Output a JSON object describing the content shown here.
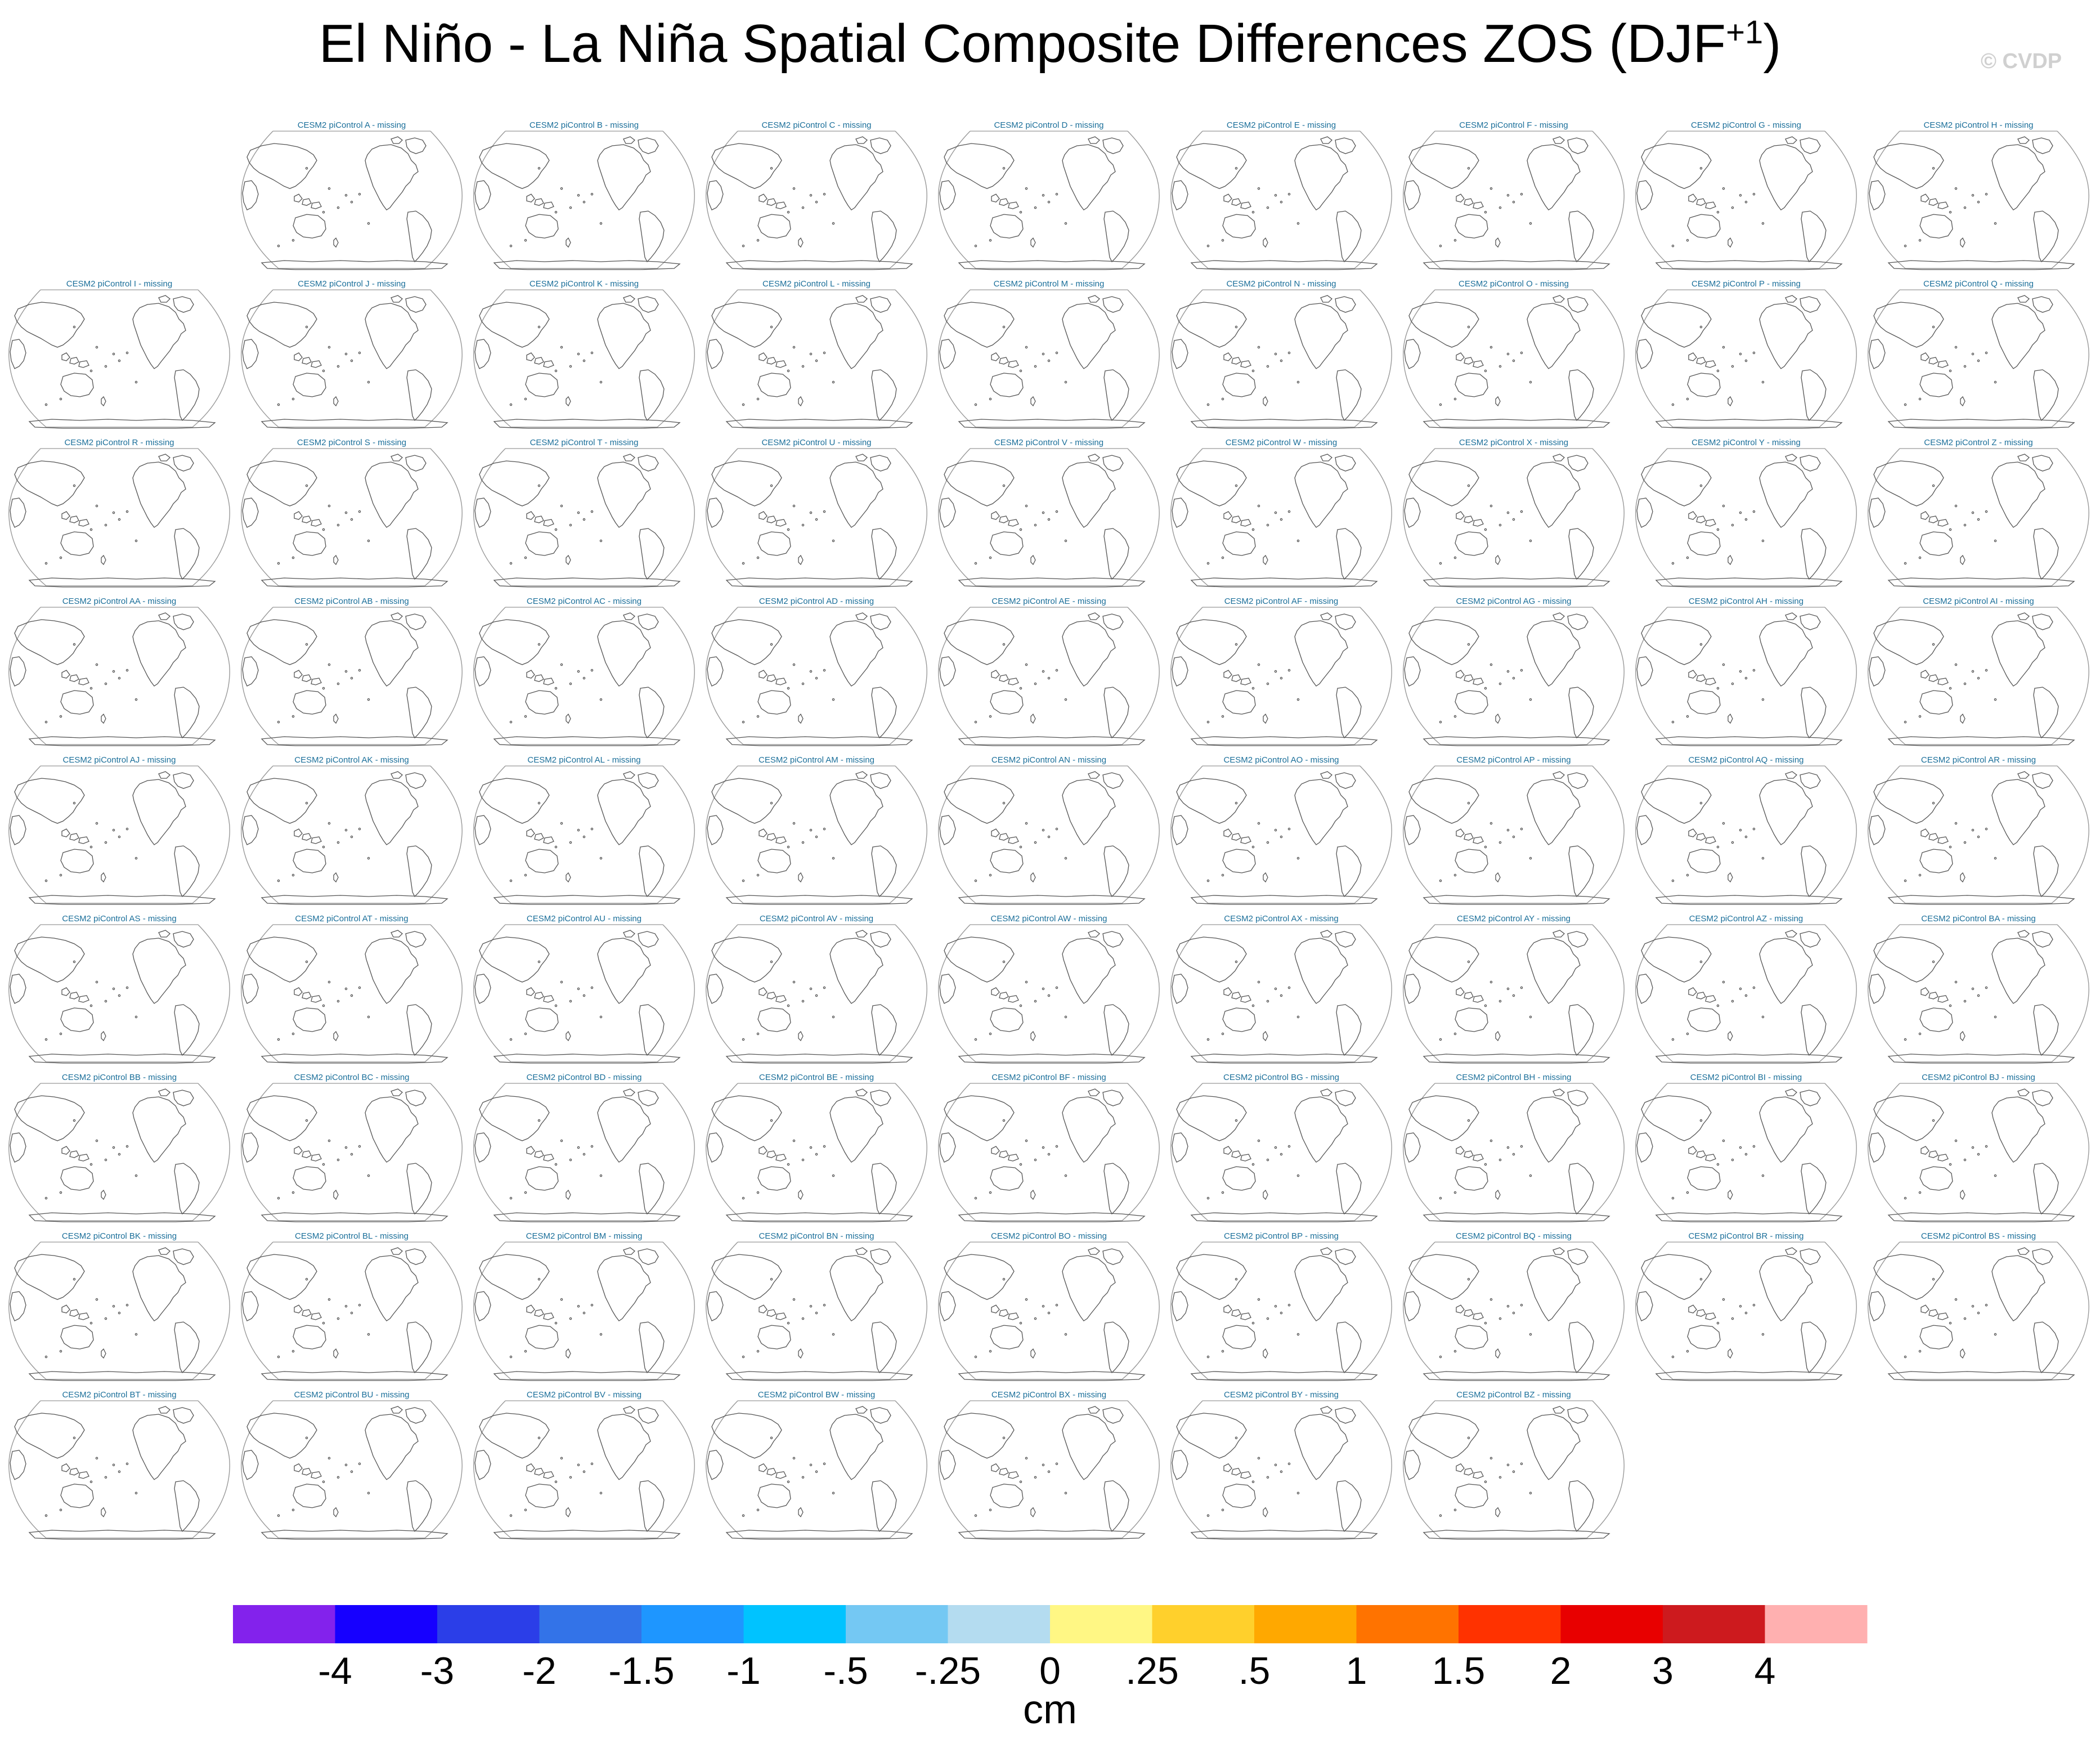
{
  "title": {
    "main": "El Niño - La Niña Spatial Composite Differences ZOS (DJF",
    "sup": "+1",
    "close": ")"
  },
  "copyright": "© CVDP",
  "panels": [
    {
      "label": "CESM2 piControl A - missing"
    },
    {
      "label": "CESM2 piControl B - missing"
    },
    {
      "label": "CESM2 piControl C - missing"
    },
    {
      "label": "CESM2 piControl D - missing"
    },
    {
      "label": "CESM2 piControl E - missing"
    },
    {
      "label": "CESM2 piControl F - missing"
    },
    {
      "label": "CESM2 piControl G - missing"
    },
    {
      "label": "CESM2 piControl H - missing"
    },
    {
      "label": "CESM2 piControl I - missing"
    },
    {
      "label": "CESM2 piControl J - missing"
    },
    {
      "label": "CESM2 piControl K - missing"
    },
    {
      "label": "CESM2 piControl L - missing"
    },
    {
      "label": "CESM2 piControl M - missing"
    },
    {
      "label": "CESM2 piControl N - missing"
    },
    {
      "label": "CESM2 piControl O - missing"
    },
    {
      "label": "CESM2 piControl P - missing"
    },
    {
      "label": "CESM2 piControl Q - missing"
    },
    {
      "label": "CESM2 piControl R - missing"
    },
    {
      "label": "CESM2 piControl S - missing"
    },
    {
      "label": "CESM2 piControl T - missing"
    },
    {
      "label": "CESM2 piControl U - missing"
    },
    {
      "label": "CESM2 piControl V - missing"
    },
    {
      "label": "CESM2 piControl W - missing"
    },
    {
      "label": "CESM2 piControl X - missing"
    },
    {
      "label": "CESM2 piControl Y - missing"
    },
    {
      "label": "CESM2 piControl Z - missing"
    },
    {
      "label": "CESM2 piControl AA - missing"
    },
    {
      "label": "CESM2 piControl AB - missing"
    },
    {
      "label": "CESM2 piControl AC - missing"
    },
    {
      "label": "CESM2 piControl AD - missing"
    },
    {
      "label": "CESM2 piControl AE - missing"
    },
    {
      "label": "CESM2 piControl AF - missing"
    },
    {
      "label": "CESM2 piControl AG - missing"
    },
    {
      "label": "CESM2 piControl AH - missing"
    },
    {
      "label": "CESM2 piControl AI - missing"
    },
    {
      "label": "CESM2 piControl AJ - missing"
    },
    {
      "label": "CESM2 piControl AK - missing"
    },
    {
      "label": "CESM2 piControl AL - missing"
    },
    {
      "label": "CESM2 piControl AM - missing"
    },
    {
      "label": "CESM2 piControl AN - missing"
    },
    {
      "label": "CESM2 piControl AO - missing"
    },
    {
      "label": "CESM2 piControl AP - missing"
    },
    {
      "label": "CESM2 piControl AQ - missing"
    },
    {
      "label": "CESM2 piControl AR - missing"
    },
    {
      "label": "CESM2 piControl AS - missing"
    },
    {
      "label": "CESM2 piControl AT - missing"
    },
    {
      "label": "CESM2 piControl AU - missing"
    },
    {
      "label": "CESM2 piControl AV - missing"
    },
    {
      "label": "CESM2 piControl AW - missing"
    },
    {
      "label": "CESM2 piControl AX - missing"
    },
    {
      "label": "CESM2 piControl AY - missing"
    },
    {
      "label": "CESM2 piControl AZ - missing"
    },
    {
      "label": "CESM2 piControl BA - missing"
    },
    {
      "label": "CESM2 piControl BB - missing"
    },
    {
      "label": "CESM2 piControl BC - missing"
    },
    {
      "label": "CESM2 piControl BD - missing"
    },
    {
      "label": "CESM2 piControl BE - missing"
    },
    {
      "label": "CESM2 piControl BF - missing"
    },
    {
      "label": "CESM2 piControl BG - missing"
    },
    {
      "label": "CESM2 piControl BH - missing"
    },
    {
      "label": "CESM2 piControl BI - missing"
    },
    {
      "label": "CESM2 piControl BJ - missing"
    },
    {
      "label": "CESM2 piControl BK - missing"
    },
    {
      "label": "CESM2 piControl BL - missing"
    },
    {
      "label": "CESM2 piControl BM - missing"
    },
    {
      "label": "CESM2 piControl BN - missing"
    },
    {
      "label": "CESM2 piControl BO - missing"
    },
    {
      "label": "CESM2 piControl BP - missing"
    },
    {
      "label": "CESM2 piControl BQ - missing"
    },
    {
      "label": "CESM2 piControl BR - missing"
    },
    {
      "label": "CESM2 piControl BS - missing"
    },
    {
      "label": "CESM2 piControl BT - missing"
    },
    {
      "label": "CESM2 piControl BU - missing"
    },
    {
      "label": "CESM2 piControl BV - missing"
    },
    {
      "label": "CESM2 piControl BW - missing"
    },
    {
      "label": "CESM2 piControl BX - missing"
    },
    {
      "label": "CESM2 piControl BY - missing"
    },
    {
      "label": "CESM2 piControl BZ - missing"
    }
  ],
  "colorbar": {
    "colors": [
      "#8322ec",
      "#1600ff",
      "#2b3ee8",
      "#3373e8",
      "#1e96ff",
      "#00c3ff",
      "#74c8f3",
      "#b4dcf0",
      "#fff784",
      "#ffd02c",
      "#ffa800",
      "#ff7300",
      "#ff3200",
      "#e80000",
      "#cd1a1e",
      "#ffb0b0"
    ],
    "labels": [
      "-4",
      "-3",
      "-2",
      "-1.5",
      "-1",
      "-.5",
      "-.25",
      "0",
      ".25",
      ".5",
      "1",
      "1.5",
      "2",
      "3",
      "4"
    ],
    "units": "cm"
  }
}
